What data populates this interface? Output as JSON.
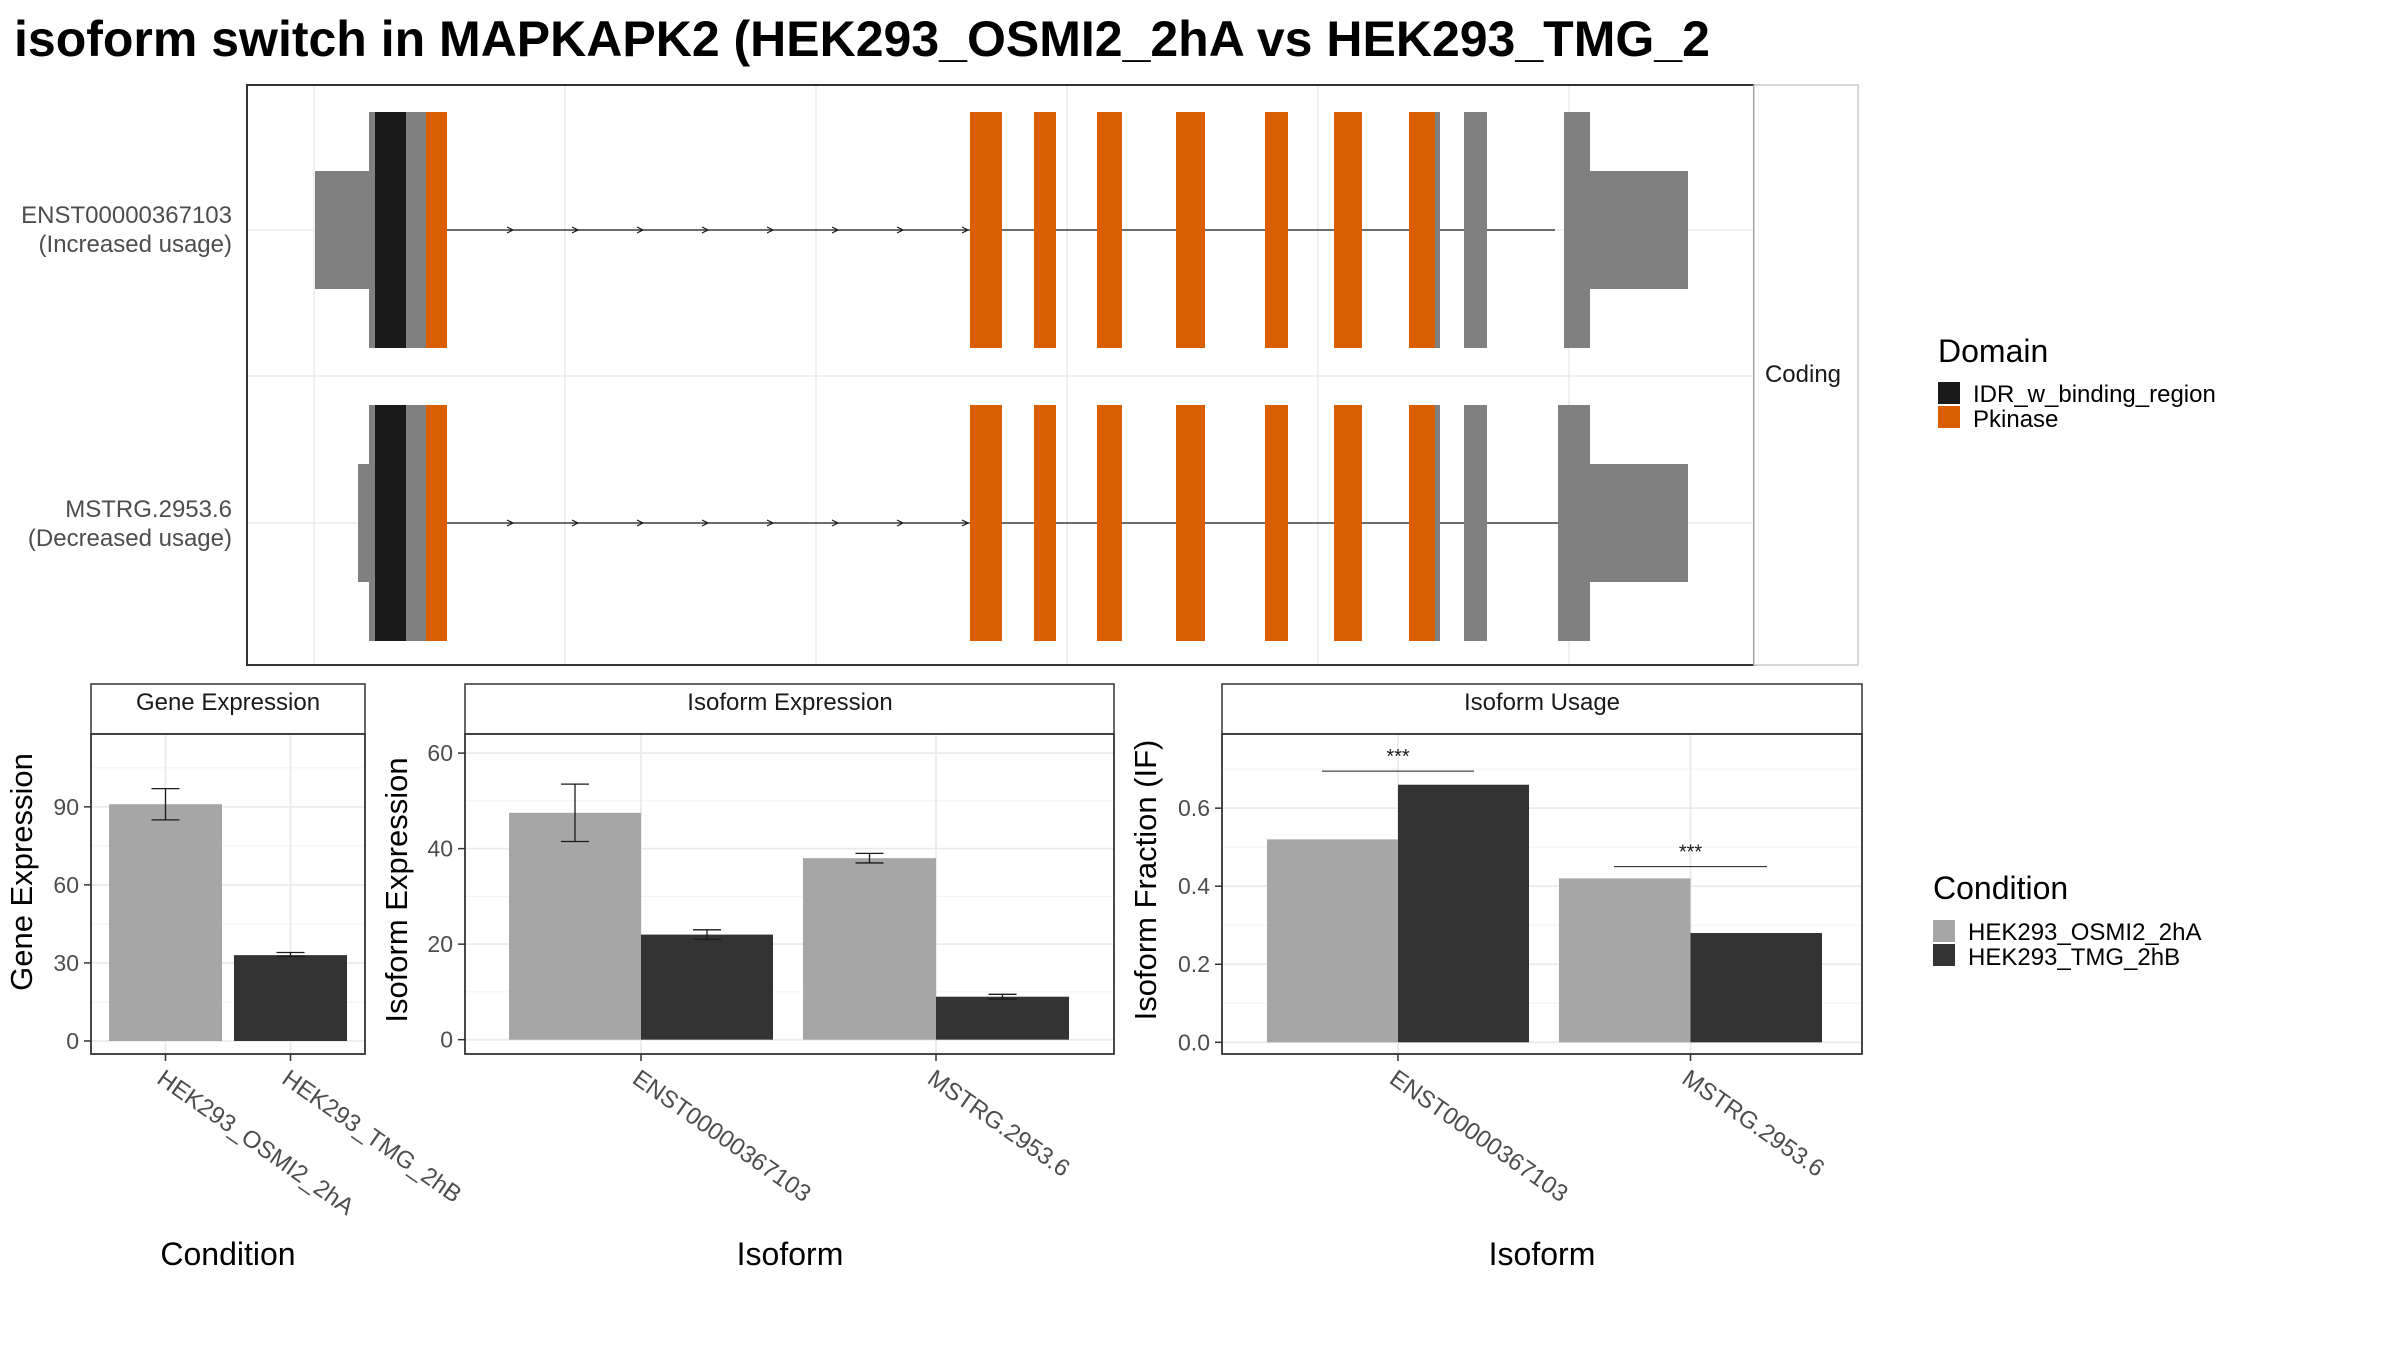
{
  "title": "isoform switch in MAPKAPK2 (HEK293_OSMI2_2hA vs HEK293_TMG_2",
  "colors": {
    "utr": "#808080",
    "idr": "#1a1a1a",
    "pkinase": "#d95f02",
    "cond_a": "#a6a6a6",
    "cond_b": "#333333",
    "grid": "#ebebeb",
    "panel_border": "#333333"
  },
  "structure": {
    "strip_label": "Coding",
    "isoforms": [
      {
        "id": "ENST00000367103",
        "label": "ENST00000367103",
        "sublabel": "(Increased usage)"
      },
      {
        "id": "MSTRG.2953.6",
        "label": "MSTRG.2953.6",
        "sublabel": "(Decreased usage)"
      }
    ]
  },
  "legends": {
    "domain": {
      "title": "Domain",
      "items": [
        {
          "label": "IDR_w_binding_region",
          "color": "#1a1a1a"
        },
        {
          "label": "Pkinase",
          "color": "#d95f02"
        }
      ]
    },
    "condition": {
      "title": "Condition",
      "items": [
        {
          "label": "HEK293_OSMI2_2hA",
          "color": "#a6a6a6"
        },
        {
          "label": "HEK293_TMG_2hB",
          "color": "#333333"
        }
      ]
    }
  },
  "chart_data": [
    {
      "type": "bar",
      "title": "Gene Expression",
      "xlabel": "Condition",
      "ylabel": "Gene Expression",
      "categories": [
        "HEK293_OSMI2_2hA",
        "HEK293_TMG_2hB"
      ],
      "values": [
        91,
        33
      ],
      "error": [
        [
          85,
          97
        ],
        [
          32.5,
          34
        ]
      ],
      "yticks": [
        0,
        30,
        60,
        90
      ],
      "ylim": [
        -5,
        118
      ]
    },
    {
      "type": "bar",
      "title": "Isoform Expression",
      "xlabel": "Isoform",
      "ylabel": "Isoform Expression",
      "categories": [
        "ENST00000367103",
        "MSTRG.2953.6"
      ],
      "series": [
        {
          "name": "HEK293_OSMI2_2hA",
          "values": [
            47.5,
            38
          ],
          "error": [
            [
              41.5,
              53.5
            ],
            [
              37,
              39
            ]
          ]
        },
        {
          "name": "HEK293_TMG_2hB",
          "values": [
            22,
            9
          ],
          "error": [
            [
              21,
              23
            ],
            [
              8.5,
              9.5
            ]
          ]
        }
      ],
      "yticks": [
        0,
        20,
        40,
        60
      ],
      "ylim": [
        -3,
        64
      ]
    },
    {
      "type": "bar",
      "title": "Isoform Usage",
      "xlabel": "Isoform",
      "ylabel": "Isoform Fraction (IF)",
      "categories": [
        "ENST00000367103",
        "MSTRG.2953.6"
      ],
      "series": [
        {
          "name": "HEK293_OSMI2_2hA",
          "values": [
            0.52,
            0.42
          ]
        },
        {
          "name": "HEK293_TMG_2hB",
          "values": [
            0.66,
            0.28
          ]
        }
      ],
      "significance": [
        "***",
        "***"
      ],
      "yticks": [
        0.0,
        0.2,
        0.4,
        0.6
      ],
      "ylim": [
        -0.03,
        0.79
      ]
    }
  ]
}
